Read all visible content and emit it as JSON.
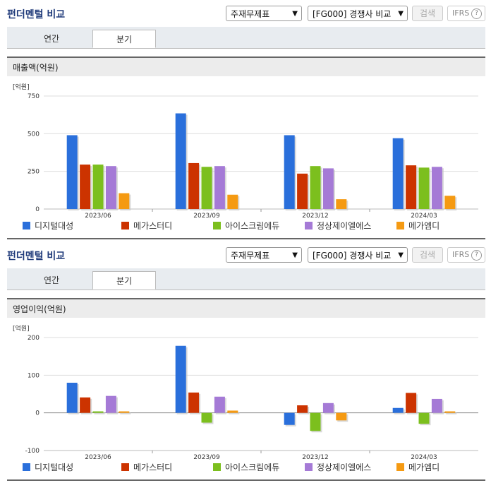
{
  "panels": [
    {
      "title": "펀더멘털 비교",
      "dropdown1": "주재무제표",
      "dropdown2": "[FG000] 경쟁사 비교",
      "search_label": "검색",
      "ifrs_label": "IFRS",
      "help_glyph": "?",
      "tabs": [
        "연간",
        "분기"
      ],
      "active_tab": 1,
      "section_label": "매출액(억원)",
      "unit_label": "[억원]"
    },
    {
      "title": "펀더멘털 비교",
      "dropdown1": "주재무제표",
      "dropdown2": "[FG000] 경쟁사 비교",
      "search_label": "검색",
      "ifrs_label": "IFRS",
      "help_glyph": "?",
      "tabs": [
        "연간",
        "분기"
      ],
      "active_tab": 1,
      "section_label": "영업이익(억원)",
      "unit_label": "[억원]"
    }
  ],
  "chart_data": [
    {
      "type": "bar",
      "title": "매출액(억원)",
      "ylabel": "[억원]",
      "categories": [
        "2023/06",
        "2023/09",
        "2023/12",
        "2024/03"
      ],
      "ylim": [
        0,
        750
      ],
      "yticks": [
        0,
        250,
        500,
        750
      ],
      "grid": true,
      "legend": "bottom",
      "series": [
        {
          "name": "디지털대성",
          "color": "#2a6fdb",
          "values": [
            490,
            635,
            490,
            470
          ]
        },
        {
          "name": "메가스터디",
          "color": "#cc3300",
          "values": [
            295,
            305,
            235,
            290
          ]
        },
        {
          "name": "아이스크림에듀",
          "color": "#7cbf1e",
          "values": [
            295,
            280,
            285,
            275
          ]
        },
        {
          "name": "정상제이엘에스",
          "color": "#a57ad6",
          "values": [
            285,
            285,
            270,
            280
          ]
        },
        {
          "name": "메가엠디",
          "color": "#f59a12",
          "values": [
            105,
            95,
            65,
            88
          ]
        }
      ]
    },
    {
      "type": "bar",
      "title": "영업이익(억원)",
      "ylabel": "[억원]",
      "categories": [
        "2023/06",
        "2023/09",
        "2023/12",
        "2024/03"
      ],
      "ylim": [
        -100,
        200
      ],
      "yticks": [
        -100,
        0,
        100,
        200
      ],
      "grid": true,
      "legend": "bottom",
      "series": [
        {
          "name": "디지털대성",
          "color": "#2a6fdb",
          "values": [
            80,
            178,
            -32,
            13
          ]
        },
        {
          "name": "메가스터디",
          "color": "#cc3300",
          "values": [
            41,
            54,
            20,
            53
          ]
        },
        {
          "name": "아이스크림에듀",
          "color": "#7cbf1e",
          "values": [
            4,
            -26,
            -48,
            -29
          ]
        },
        {
          "name": "정상제이엘에스",
          "color": "#a57ad6",
          "values": [
            45,
            43,
            26,
            37
          ]
        },
        {
          "name": "메가엠디",
          "color": "#f59a12",
          "values": [
            4,
            6,
            -20,
            4
          ]
        }
      ]
    }
  ]
}
